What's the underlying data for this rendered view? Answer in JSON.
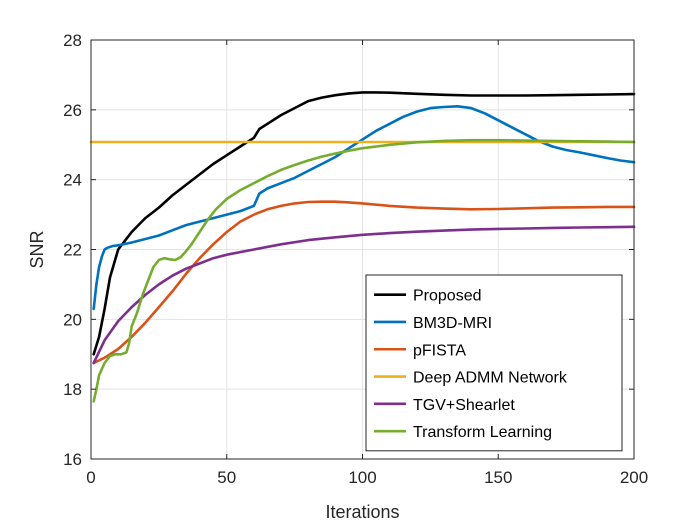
{
  "chart_data": {
    "type": "line",
    "title": "",
    "xlabel": "Iterations",
    "ylabel": "SNR",
    "xlim": [
      0,
      200
    ],
    "ylim": [
      16,
      28
    ],
    "xticks": [
      0,
      50,
      100,
      150,
      200
    ],
    "yticks": [
      16,
      18,
      20,
      22,
      24,
      26,
      28
    ],
    "grid": true,
    "legend_position": "bottom-right",
    "series": [
      {
        "name": "Proposed",
        "color": "#000000",
        "points": [
          [
            1,
            19.0
          ],
          [
            3,
            19.5
          ],
          [
            5,
            20.3
          ],
          [
            7,
            21.2
          ],
          [
            10,
            22.0
          ],
          [
            15,
            22.5
          ],
          [
            20,
            22.9
          ],
          [
            25,
            23.2
          ],
          [
            30,
            23.55
          ],
          [
            35,
            23.85
          ],
          [
            40,
            24.15
          ],
          [
            45,
            24.45
          ],
          [
            50,
            24.7
          ],
          [
            55,
            24.95
          ],
          [
            60,
            25.2
          ],
          [
            62,
            25.45
          ],
          [
            65,
            25.6
          ],
          [
            70,
            25.85
          ],
          [
            75,
            26.05
          ],
          [
            80,
            26.25
          ],
          [
            85,
            26.35
          ],
          [
            90,
            26.42
          ],
          [
            95,
            26.47
          ],
          [
            100,
            26.5
          ],
          [
            105,
            26.5
          ],
          [
            110,
            26.49
          ],
          [
            120,
            26.46
          ],
          [
            130,
            26.43
          ],
          [
            140,
            26.41
          ],
          [
            150,
            26.41
          ],
          [
            160,
            26.41
          ],
          [
            170,
            26.42
          ],
          [
            180,
            26.43
          ],
          [
            190,
            26.44
          ],
          [
            200,
            26.45
          ]
        ]
      },
      {
        "name": "BM3D-MRI",
        "color": "#0072BD",
        "points": [
          [
            1,
            20.3
          ],
          [
            2,
            21.0
          ],
          [
            3,
            21.5
          ],
          [
            4,
            21.8
          ],
          [
            5,
            22.0
          ],
          [
            6,
            22.05
          ],
          [
            8,
            22.1
          ],
          [
            10,
            22.12
          ],
          [
            15,
            22.2
          ],
          [
            20,
            22.3
          ],
          [
            25,
            22.4
          ],
          [
            30,
            22.55
          ],
          [
            35,
            22.7
          ],
          [
            40,
            22.8
          ],
          [
            45,
            22.9
          ],
          [
            50,
            23.0
          ],
          [
            55,
            23.1
          ],
          [
            60,
            23.25
          ],
          [
            62,
            23.6
          ],
          [
            65,
            23.75
          ],
          [
            70,
            23.9
          ],
          [
            75,
            24.05
          ],
          [
            80,
            24.25
          ],
          [
            85,
            24.45
          ],
          [
            90,
            24.65
          ],
          [
            95,
            24.9
          ],
          [
            100,
            25.15
          ],
          [
            105,
            25.4
          ],
          [
            110,
            25.6
          ],
          [
            115,
            25.8
          ],
          [
            120,
            25.95
          ],
          [
            125,
            26.05
          ],
          [
            130,
            26.08
          ],
          [
            135,
            26.1
          ],
          [
            140,
            26.05
          ],
          [
            145,
            25.9
          ],
          [
            150,
            25.7
          ],
          [
            155,
            25.5
          ],
          [
            160,
            25.3
          ],
          [
            165,
            25.1
          ],
          [
            170,
            24.95
          ],
          [
            175,
            24.85
          ],
          [
            180,
            24.78
          ],
          [
            185,
            24.7
          ],
          [
            190,
            24.62
          ],
          [
            195,
            24.55
          ],
          [
            200,
            24.5
          ]
        ]
      },
      {
        "name": "pFISTA",
        "color": "#D95319",
        "points": [
          [
            1,
            18.75
          ],
          [
            5,
            18.9
          ],
          [
            10,
            19.15
          ],
          [
            15,
            19.5
          ],
          [
            20,
            19.9
          ],
          [
            25,
            20.35
          ],
          [
            30,
            20.8
          ],
          [
            35,
            21.3
          ],
          [
            40,
            21.75
          ],
          [
            45,
            22.15
          ],
          [
            50,
            22.5
          ],
          [
            55,
            22.8
          ],
          [
            60,
            23.0
          ],
          [
            65,
            23.15
          ],
          [
            70,
            23.25
          ],
          [
            75,
            23.32
          ],
          [
            80,
            23.36
          ],
          [
            85,
            23.37
          ],
          [
            90,
            23.37
          ],
          [
            95,
            23.35
          ],
          [
            100,
            23.32
          ],
          [
            110,
            23.25
          ],
          [
            120,
            23.2
          ],
          [
            130,
            23.17
          ],
          [
            140,
            23.15
          ],
          [
            150,
            23.16
          ],
          [
            160,
            23.18
          ],
          [
            170,
            23.2
          ],
          [
            180,
            23.21
          ],
          [
            190,
            23.22
          ],
          [
            200,
            23.22
          ]
        ]
      },
      {
        "name": "Deep ADMM Network",
        "color": "#EDB120",
        "points": [
          [
            0,
            25.08
          ],
          [
            200,
            25.08
          ]
        ]
      },
      {
        "name": "TGV+Shearlet",
        "color": "#7E2F8E",
        "points": [
          [
            1,
            18.75
          ],
          [
            5,
            19.4
          ],
          [
            10,
            19.95
          ],
          [
            15,
            20.35
          ],
          [
            20,
            20.7
          ],
          [
            25,
            21.0
          ],
          [
            30,
            21.25
          ],
          [
            35,
            21.45
          ],
          [
            40,
            21.6
          ],
          [
            45,
            21.75
          ],
          [
            50,
            21.85
          ],
          [
            60,
            22.0
          ],
          [
            70,
            22.15
          ],
          [
            80,
            22.27
          ],
          [
            90,
            22.35
          ],
          [
            100,
            22.42
          ],
          [
            110,
            22.47
          ],
          [
            120,
            22.51
          ],
          [
            130,
            22.54
          ],
          [
            140,
            22.57
          ],
          [
            150,
            22.59
          ],
          [
            160,
            22.6
          ],
          [
            170,
            22.62
          ],
          [
            180,
            22.63
          ],
          [
            190,
            22.64
          ],
          [
            200,
            22.65
          ]
        ]
      },
      {
        "name": "Transform Learning",
        "color": "#77AC30",
        "points": [
          [
            1,
            17.65
          ],
          [
            2,
            18.0
          ],
          [
            3,
            18.4
          ],
          [
            5,
            18.75
          ],
          [
            7,
            18.95
          ],
          [
            9,
            19.0
          ],
          [
            11,
            19.0
          ],
          [
            13,
            19.05
          ],
          [
            14,
            19.3
          ],
          [
            15,
            19.8
          ],
          [
            17,
            20.2
          ],
          [
            19,
            20.7
          ],
          [
            21,
            21.1
          ],
          [
            23,
            21.5
          ],
          [
            25,
            21.7
          ],
          [
            27,
            21.75
          ],
          [
            29,
            21.72
          ],
          [
            31,
            21.7
          ],
          [
            33,
            21.78
          ],
          [
            35,
            21.95
          ],
          [
            37,
            22.15
          ],
          [
            40,
            22.5
          ],
          [
            43,
            22.85
          ],
          [
            46,
            23.15
          ],
          [
            50,
            23.45
          ],
          [
            55,
            23.7
          ],
          [
            60,
            23.9
          ],
          [
            65,
            24.1
          ],
          [
            70,
            24.28
          ],
          [
            75,
            24.42
          ],
          [
            80,
            24.55
          ],
          [
            85,
            24.66
          ],
          [
            90,
            24.75
          ],
          [
            95,
            24.83
          ],
          [
            100,
            24.9
          ],
          [
            110,
            25.0
          ],
          [
            120,
            25.07
          ],
          [
            130,
            25.11
          ],
          [
            140,
            25.13
          ],
          [
            150,
            25.13
          ],
          [
            160,
            25.12
          ],
          [
            170,
            25.11
          ],
          [
            180,
            25.1
          ],
          [
            190,
            25.09
          ],
          [
            200,
            25.08
          ]
        ]
      }
    ]
  }
}
